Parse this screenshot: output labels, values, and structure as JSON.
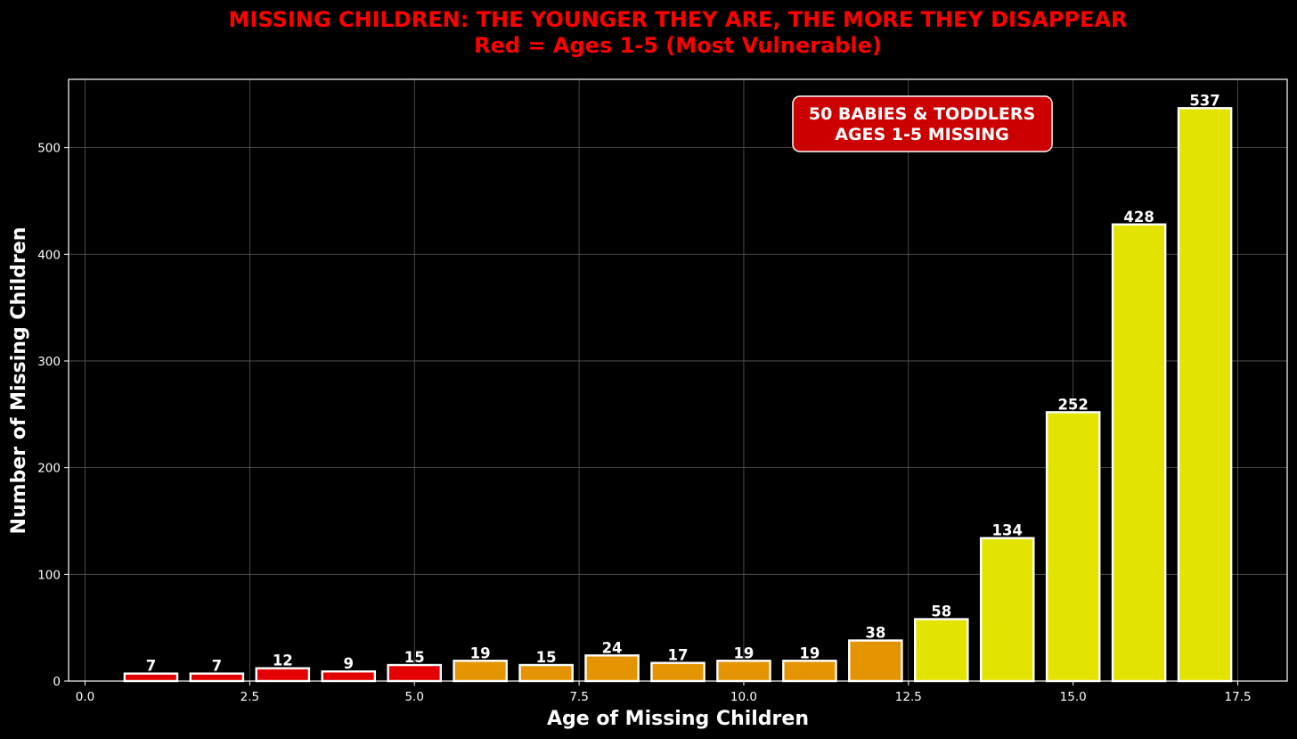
{
  "chart_data": {
    "type": "bar",
    "title": "MISSING CHILDREN: THE YOUNGER THEY ARE, THE MORE THEY DISAPPEAR",
    "subtitle": "Red = Ages 1-5 (Most Vulnerable)",
    "xlabel": "Age of Missing Children",
    "ylabel": "Number of Missing Children",
    "x": [
      1,
      2,
      3,
      4,
      5,
      6,
      7,
      8,
      9,
      10,
      11,
      12,
      13,
      14,
      15,
      16,
      17
    ],
    "values": [
      7,
      7,
      12,
      9,
      15,
      19,
      15,
      24,
      17,
      19,
      19,
      38,
      58,
      134,
      252,
      428,
      537
    ],
    "value_labels": [
      "7",
      "7",
      "12",
      "9",
      "15",
      "19",
      "15",
      "24",
      "17",
      "19",
      "19",
      "38",
      "58",
      "134",
      "252",
      "428",
      "537"
    ],
    "xlim": [
      -0.25,
      18.25
    ],
    "ylim": [
      0,
      564
    ],
    "x_ticks": [
      0,
      2.5,
      5,
      7.5,
      10,
      12.5,
      15,
      17.5
    ],
    "x_tick_labels": [
      "0.0",
      "2.5",
      "5.0",
      "7.5",
      "10.0",
      "12.5",
      "15.0",
      "17.5"
    ],
    "y_ticks": [
      0,
      100,
      200,
      300,
      400,
      500
    ],
    "y_tick_labels": [
      "0",
      "100",
      "200",
      "300",
      "400",
      "500"
    ],
    "grid": true,
    "bar_width": 0.8,
    "color_groups": [
      {
        "ages": "1-5",
        "color": "#e30000"
      },
      {
        "ages": "6-12",
        "color": "#e39400"
      },
      {
        "ages": "13-17",
        "color": "#e3e300"
      }
    ],
    "bar_edge_color": "#ffffff",
    "annotation": {
      "lines": [
        "50 BABIES & TODDLERS",
        "AGES 1-5 MISSING"
      ],
      "box_color": "#cc0000",
      "placement": "top-right"
    }
  },
  "colors": {
    "background": "#000000",
    "title": "#ff0000",
    "text": "#ffffff",
    "grid": "#5a5a5a",
    "axes": "#ffffff"
  }
}
